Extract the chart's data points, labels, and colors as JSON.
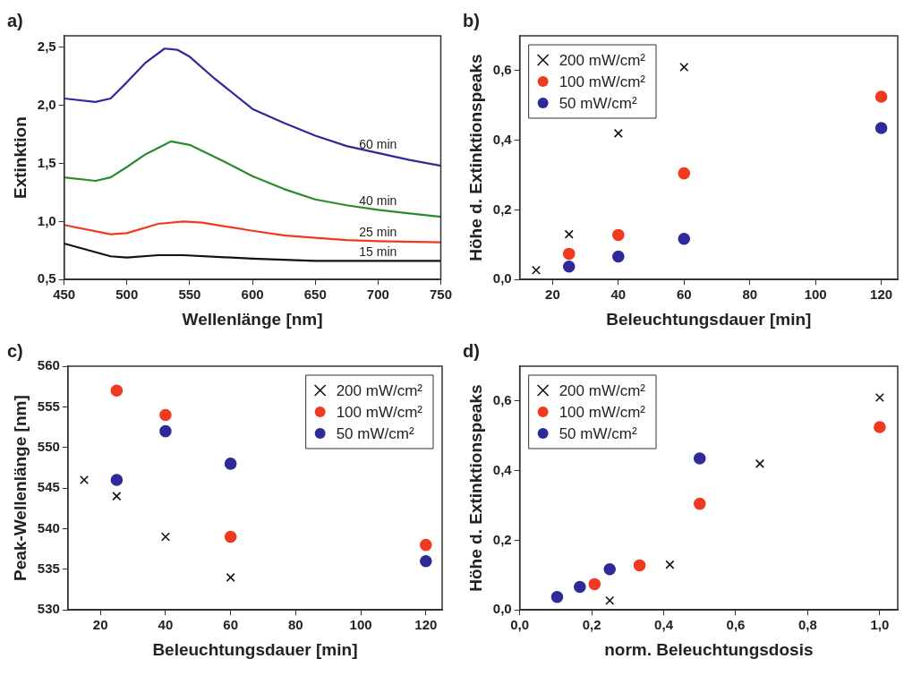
{
  "chart_data": [
    {
      "type": "line",
      "title": "a)",
      "xlabel": "Wellenlänge [nm]",
      "ylabel": "Extinktion",
      "xlim": [
        450,
        750
      ],
      "xticks": [
        450,
        500,
        550,
        600,
        650,
        700,
        750
      ],
      "ylim": [
        0.5,
        2.6
      ],
      "yticks": [
        {
          "value": 0.5,
          "label": "0,5"
        },
        {
          "value": 1,
          "label": "1,0"
        },
        {
          "value": 1.5,
          "label": "1,5"
        },
        {
          "value": 2,
          "label": "2,0"
        },
        {
          "value": 2.5,
          "label": "2,5"
        }
      ],
      "grid": false,
      "legend": false,
      "marker": "none",
      "line_style": "solid",
      "series": [
        {
          "name": "60 min",
          "color": "#2e2a9a",
          "x": [
            450,
            475,
            487,
            500,
            515,
            530,
            540,
            550,
            570,
            600,
            625,
            650,
            675,
            700,
            725,
            750
          ],
          "values": [
            2.06,
            2.03,
            2.06,
            2.2,
            2.37,
            2.49,
            2.48,
            2.42,
            2.23,
            1.97,
            1.85,
            1.74,
            1.65,
            1.59,
            1.53,
            1.48
          ]
        },
        {
          "name": "40 min",
          "color": "#2a8a30",
          "x": [
            450,
            475,
            487,
            500,
            515,
            535,
            550,
            575,
            600,
            625,
            650,
            675,
            700,
            725,
            750
          ],
          "values": [
            1.38,
            1.35,
            1.38,
            1.47,
            1.58,
            1.69,
            1.66,
            1.53,
            1.39,
            1.28,
            1.19,
            1.14,
            1.1,
            1.07,
            1.04
          ]
        },
        {
          "name": "25 min",
          "color": "#f03a20",
          "x": [
            450,
            487,
            500,
            525,
            545,
            560,
            600,
            625,
            650,
            675,
            700,
            750
          ],
          "values": [
            0.97,
            0.89,
            0.9,
            0.98,
            1.0,
            0.99,
            0.92,
            0.88,
            0.86,
            0.84,
            0.83,
            0.82
          ]
        },
        {
          "name": "15 min",
          "color": "#111111",
          "x": [
            450,
            487,
            500,
            525,
            545,
            600,
            650,
            700,
            750
          ],
          "values": [
            0.81,
            0.7,
            0.69,
            0.71,
            0.71,
            0.68,
            0.66,
            0.66,
            0.66
          ]
        }
      ]
    },
    {
      "type": "scatter",
      "title": "b)",
      "xlabel": "Beleuchtungsdauer [min]",
      "ylabel": "Höhe d. Extinktionspeaks",
      "xlim": [
        10,
        125
      ],
      "xticks": [
        20,
        40,
        60,
        80,
        100,
        120
      ],
      "ylim": [
        0,
        0.7
      ],
      "yticks": [
        {
          "value": 0,
          "label": "0,0"
        },
        {
          "value": 0.2,
          "label": "0,2"
        },
        {
          "value": 0.4,
          "label": "0,4"
        },
        {
          "value": 0.6,
          "label": "0,6"
        }
      ],
      "grid": false,
      "legend": "top left",
      "series": [
        {
          "name": "200 mW/cm²",
          "color": "#111111",
          "marker": "cross",
          "x": [
            15,
            25,
            40,
            60
          ],
          "values": [
            0.027,
            0.13,
            0.42,
            0.61
          ]
        },
        {
          "name": "100 mW/cm²",
          "color": "#f03a20",
          "marker": "circle",
          "x": [
            25,
            40,
            60,
            120
          ],
          "values": [
            0.074,
            0.128,
            0.305,
            0.525
          ]
        },
        {
          "name": "50 mW/cm²",
          "color": "#2e2a9a",
          "marker": "circle",
          "x": [
            25,
            40,
            60,
            120
          ],
          "values": [
            0.037,
            0.066,
            0.117,
            0.435
          ]
        }
      ]
    },
    {
      "type": "scatter",
      "title": "c)",
      "xlabel": "Beleuchtungsdauer [min]",
      "ylabel": "Peak-Wellenlänge [nm]",
      "xlim": [
        10,
        125
      ],
      "xticks": [
        20,
        40,
        60,
        80,
        100,
        120
      ],
      "ylim": [
        530,
        560
      ],
      "yticks": [
        530,
        535,
        540,
        545,
        550,
        555,
        560
      ],
      "grid": false,
      "legend": "top right",
      "series": [
        {
          "name": "200 mW/cm²",
          "color": "#111111",
          "marker": "cross",
          "x": [
            15,
            25,
            40,
            60
          ],
          "values": [
            546,
            544,
            539,
            534
          ]
        },
        {
          "name": "100 mW/cm²",
          "color": "#f03a20",
          "marker": "circle",
          "x": [
            25,
            40,
            60,
            120
          ],
          "values": [
            557,
            554,
            539,
            538
          ]
        },
        {
          "name": "50 mW/cm²",
          "color": "#2e2a9a",
          "marker": "circle",
          "x": [
            25,
            40,
            60,
            120
          ],
          "values": [
            546,
            552,
            548,
            536
          ]
        }
      ]
    },
    {
      "type": "scatter",
      "title": "d)",
      "xlabel": "norm. Beleuchtungsdosis",
      "ylabel": "Höhe d. Extinktionspeaks",
      "xlim": [
        0,
        1.05
      ],
      "xticks": [
        {
          "value": 0,
          "label": "0,0"
        },
        {
          "value": 0.2,
          "label": "0,2"
        },
        {
          "value": 0.4,
          "label": "0,4"
        },
        {
          "value": 0.6,
          "label": "0,6"
        },
        {
          "value": 0.8,
          "label": "0,8"
        },
        {
          "value": 1,
          "label": "1,0"
        }
      ],
      "ylim": [
        0,
        0.7
      ],
      "yticks": [
        {
          "value": 0,
          "label": "0,0"
        },
        {
          "value": 0.2,
          "label": "0,2"
        },
        {
          "value": 0.4,
          "label": "0,4"
        },
        {
          "value": 0.6,
          "label": "0,6"
        }
      ],
      "grid": false,
      "legend": "top left",
      "series": [
        {
          "name": "200 mW/cm²",
          "color": "#111111",
          "marker": "cross",
          "x": [
            0.25,
            0.417,
            0.667,
            1.0
          ],
          "values": [
            0.027,
            0.13,
            0.42,
            0.61
          ]
        },
        {
          "name": "100 mW/cm²",
          "color": "#f03a20",
          "marker": "circle",
          "x": [
            0.208,
            0.333,
            0.5,
            1.0
          ],
          "values": [
            0.074,
            0.128,
            0.305,
            0.525
          ]
        },
        {
          "name": "50 mW/cm²",
          "color": "#2e2a9a",
          "marker": "circle",
          "x": [
            0.104,
            0.167,
            0.25,
            0.5
          ],
          "values": [
            0.037,
            0.066,
            0.117,
            0.435
          ]
        }
      ]
    }
  ]
}
